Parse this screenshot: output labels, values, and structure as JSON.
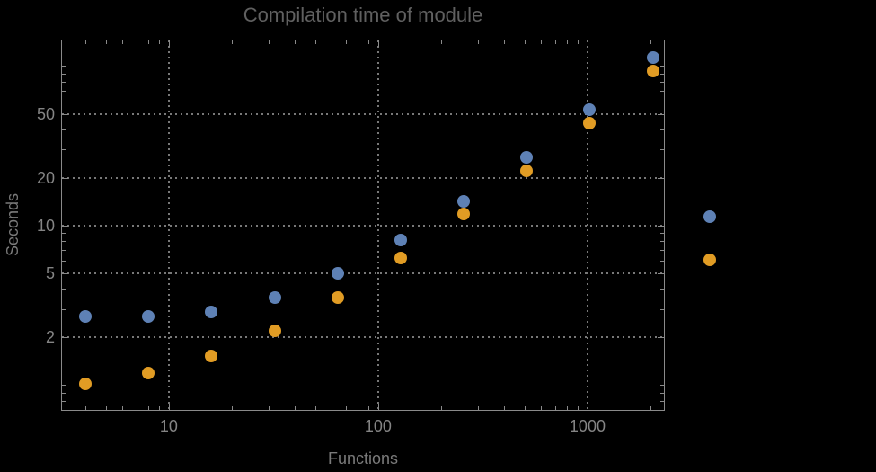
{
  "window": {
    "background": "#000000"
  },
  "chart_data": {
    "type": "scatter",
    "title": "Compilation time of module",
    "xlabel": "Functions",
    "ylabel": "Seconds",
    "x_scale": "log",
    "y_scale": "log",
    "xlim": [
      3.06,
      2340
    ],
    "ylim": [
      0.69,
      146.6
    ],
    "grid": "dotted-at-major-ticks",
    "legend_position": "right-outside",
    "x": [
      4,
      8,
      16,
      32,
      64,
      128,
      256,
      512,
      1024,
      2048
    ],
    "series": [
      {
        "name": "series-1-blue",
        "color": "#5E81B5",
        "values": [
          2.69,
          2.7,
          2.86,
          3.54,
          5.03,
          8.13,
          14.2,
          26.8,
          53.3,
          113
        ]
      },
      {
        "name": "series-2-orange",
        "color": "#E19C24",
        "values": [
          1.02,
          1.19,
          1.53,
          2.19,
          3.54,
          6.27,
          11.8,
          22.1,
          43.9,
          93.1
        ]
      }
    ],
    "x_ticks": {
      "major": [
        {
          "value": 10,
          "label": "10"
        },
        {
          "value": 100,
          "label": "100"
        },
        {
          "value": 1000,
          "label": "1000"
        }
      ],
      "minor": [
        4,
        5,
        6,
        7,
        8,
        9,
        20,
        30,
        40,
        50,
        60,
        70,
        80,
        90,
        200,
        300,
        400,
        500,
        600,
        700,
        800,
        900,
        2000
      ]
    },
    "y_ticks": {
      "major": [
        {
          "value": 2,
          "label": "2"
        },
        {
          "value": 5,
          "label": "5"
        },
        {
          "value": 10,
          "label": "10"
        },
        {
          "value": 20,
          "label": "20"
        },
        {
          "value": 50,
          "label": "50"
        }
      ],
      "minor": [
        0.8,
        0.9,
        1,
        3,
        4,
        6,
        7,
        8,
        9,
        30,
        40,
        60,
        70,
        80,
        90,
        100
      ]
    }
  },
  "legend": {
    "markers": [
      {
        "name": "series-1-marker",
        "color": "#5E81B5"
      },
      {
        "name": "series-2-marker",
        "color": "#E19C24"
      }
    ]
  },
  "colors": {
    "background": "#000000",
    "frame": "#8a8a8a",
    "grid": "#787878",
    "tick_label": "#848484",
    "axis_label": "#7a7a7a",
    "title": "#606060",
    "series1": "#5E81B5",
    "series2": "#E19C24"
  }
}
